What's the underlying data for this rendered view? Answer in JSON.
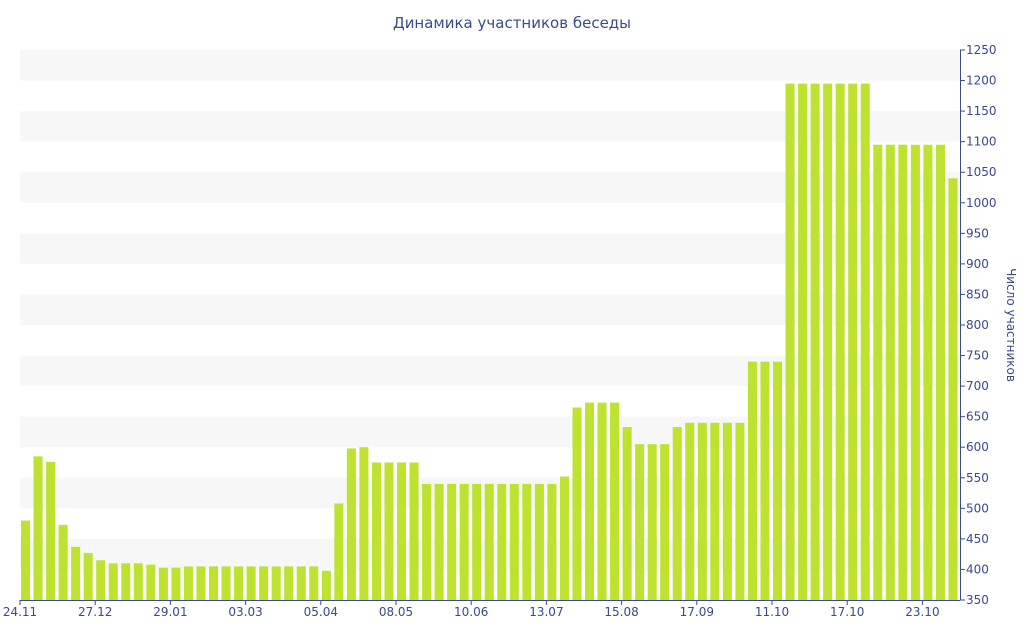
{
  "colors": {
    "bar": "#bde22f",
    "band": "#f7f7f7",
    "text": "#3a4a8a",
    "axis": "#3a4a8a"
  },
  "chart_data": {
    "type": "bar",
    "title": "Динамика участников беседы",
    "xlabel": "",
    "ylabel": "Число участников",
    "y_axis_position": "right",
    "ylim": [
      350,
      1250
    ],
    "yticks": [
      350,
      400,
      450,
      500,
      550,
      600,
      650,
      700,
      750,
      800,
      850,
      900,
      950,
      1000,
      1050,
      1100,
      1150,
      1200,
      1250
    ],
    "grid": "alternating horizontal bands",
    "legend": "none",
    "x_tick_labels": [
      {
        "label": "24.11",
        "index": 0
      },
      {
        "label": "27.12",
        "index": 6
      },
      {
        "label": "29.01",
        "index": 12
      },
      {
        "label": "03.03",
        "index": 18
      },
      {
        "label": "05.04",
        "index": 24
      },
      {
        "label": "08.05",
        "index": 30
      },
      {
        "label": "10.06",
        "index": 36
      },
      {
        "label": "13.07",
        "index": 42
      },
      {
        "label": "15.08",
        "index": 48
      },
      {
        "label": "17.09",
        "index": 54
      },
      {
        "label": "11.10",
        "index": 60
      },
      {
        "label": "17.10",
        "index": 66
      },
      {
        "label": "23.10",
        "index": 72
      }
    ],
    "values": [
      480,
      585,
      576,
      473,
      437,
      427,
      415,
      410,
      410,
      410,
      408,
      403,
      403,
      405,
      405,
      405,
      405,
      405,
      405,
      405,
      405,
      405,
      405,
      405,
      398,
      508,
      598,
      600,
      575,
      575,
      575,
      575,
      540,
      540,
      540,
      540,
      540,
      540,
      540,
      540,
      540,
      540,
      540,
      552,
      665,
      673,
      673,
      673,
      633,
      605,
      605,
      605,
      633,
      640,
      640,
      640,
      640,
      640,
      740,
      740,
      740,
      1195,
      1195,
      1195,
      1195,
      1195,
      1195,
      1195,
      1095,
      1095,
      1095,
      1095,
      1095,
      1095,
      1040
    ]
  }
}
